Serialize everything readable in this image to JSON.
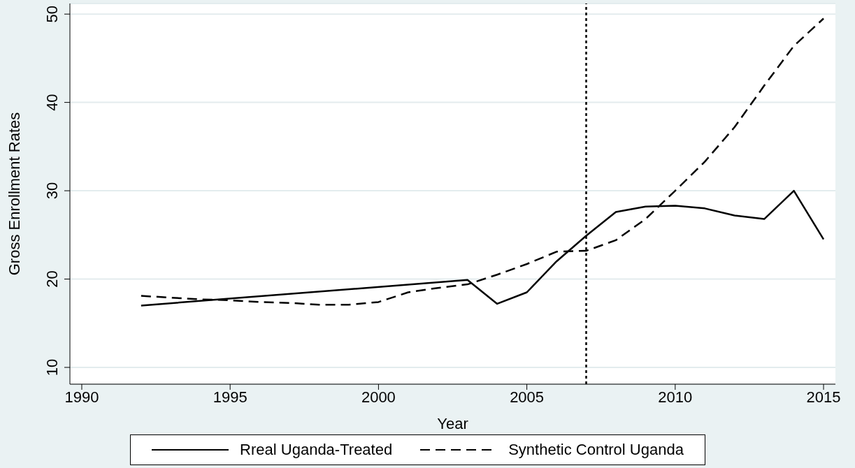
{
  "chart_data": {
    "type": "line",
    "xlabel": "Year",
    "ylabel": "Gross Enrollment Rates",
    "xlim": [
      1989.6,
      2015.4
    ],
    "xticks": [
      1990,
      1995,
      2000,
      2005,
      2010,
      2015
    ],
    "ylim": [
      8.1,
      51.2
    ],
    "yticks": [
      10,
      20,
      30,
      40,
      50
    ],
    "grid": "y",
    "legend": "bottom",
    "marker": "none",
    "ref_lines": [
      {
        "axis": "x",
        "value": 2007,
        "color": "#000000",
        "line_style": "dotted"
      }
    ],
    "series": [
      {
        "name": "Rreal Uganda-Treated",
        "color": "#000000",
        "line_style": "solid",
        "x": [
          1992,
          2003,
          2004,
          2005,
          2006,
          2007,
          2008,
          2009,
          2010,
          2011,
          2012,
          2013,
          2014,
          2015
        ],
        "values": [
          17.0,
          19.9,
          17.2,
          18.5,
          22.0,
          24.9,
          27.6,
          28.2,
          28.3,
          28.0,
          27.2,
          26.8,
          30.0,
          24.5
        ]
      },
      {
        "name": "Synthetic Control Uganda",
        "color": "#000000",
        "line_style": "dashed",
        "x": [
          1992,
          1993,
          1994,
          1995,
          1996,
          1997,
          1998,
          1999,
          2000,
          2001,
          2002,
          2003,
          2004,
          2005,
          2006,
          2007,
          2008,
          2009,
          2010,
          2011,
          2012,
          2013,
          2014,
          2015
        ],
        "values": [
          18.1,
          17.9,
          17.7,
          17.6,
          17.4,
          17.3,
          17.1,
          17.1,
          17.4,
          18.5,
          19.0,
          19.4,
          20.5,
          21.7,
          23.1,
          23.2,
          24.4,
          26.8,
          30.0,
          33.3,
          37.2,
          41.9,
          46.4,
          49.5
        ]
      }
    ]
  }
}
